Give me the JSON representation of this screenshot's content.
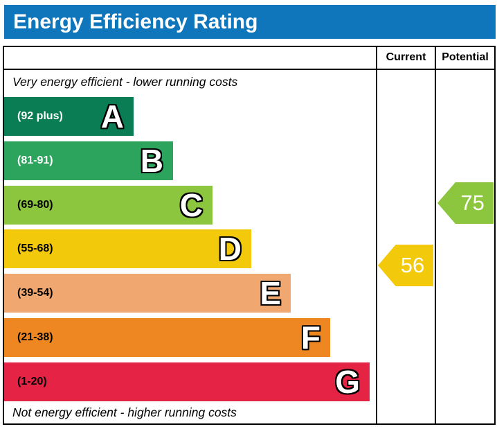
{
  "title": "Energy Efficiency Rating",
  "columns": {
    "current": "Current",
    "potential": "Potential"
  },
  "top_note": "Very energy efficient - lower running costs",
  "bottom_note": "Not energy efficient - higher running costs",
  "accent": {
    "header_blue": "#1076bc",
    "border_black": "#000000"
  },
  "chart_data": {
    "type": "bar",
    "title": "Energy Efficiency Rating",
    "bands": [
      {
        "letter": "A",
        "range_label": "(92 plus)",
        "min": 92,
        "max": 100,
        "color": "#0b7d54",
        "label_color": "#ffffff"
      },
      {
        "letter": "B",
        "range_label": "(81-91)",
        "min": 81,
        "max": 91,
        "color": "#2da45d",
        "label_color": "#ffffff"
      },
      {
        "letter": "C",
        "range_label": "(69-80)",
        "min": 69,
        "max": 80,
        "color": "#8bc63e",
        "label_color": "#000000"
      },
      {
        "letter": "D",
        "range_label": "(55-68)",
        "min": 55,
        "max": 68,
        "color": "#f2ca0b",
        "label_color": "#000000"
      },
      {
        "letter": "E",
        "range_label": "(39-54)",
        "min": 39,
        "max": 54,
        "color": "#f0a770",
        "label_color": "#000000"
      },
      {
        "letter": "F",
        "range_label": "(21-38)",
        "min": 21,
        "max": 38,
        "color": "#ee8722",
        "label_color": "#000000"
      },
      {
        "letter": "G",
        "range_label": "(1-20)",
        "min": 1,
        "max": 20,
        "color": "#e52445",
        "label_color": "#000000"
      }
    ],
    "current": {
      "value": 56,
      "band": "D",
      "color": "#f2ca0b"
    },
    "potential": {
      "value": 75,
      "band": "C",
      "color": "#8bc63e"
    }
  }
}
